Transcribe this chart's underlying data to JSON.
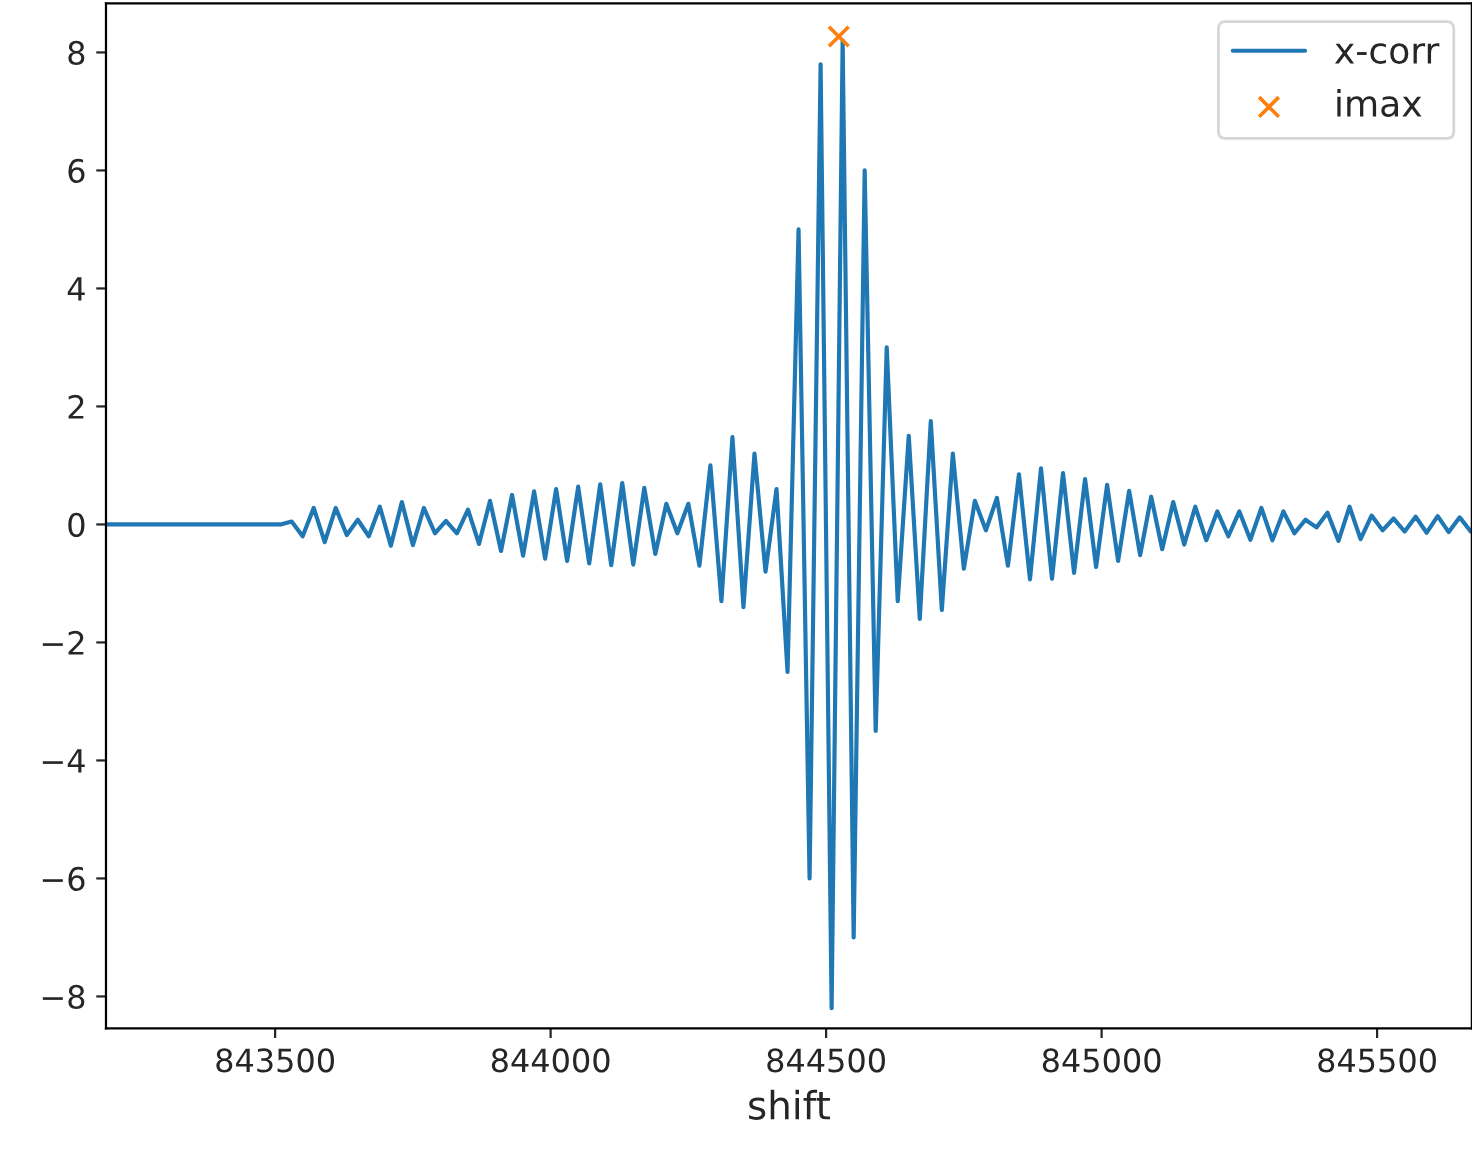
{
  "chart_data": {
    "type": "line",
    "xlabel": "shift",
    "xlim": [
      843193,
      845672
    ],
    "ylim": [
      -8.54,
      8.83
    ],
    "xticks": [
      843500,
      844000,
      844500,
      845000,
      845500
    ],
    "yticks": [
      {
        "value": -8,
        "label": "−8"
      },
      {
        "value": -6,
        "label": "−6"
      },
      {
        "value": -4,
        "label": "−4"
      },
      {
        "value": -2,
        "label": "−2"
      },
      0,
      2,
      4,
      6,
      8
    ],
    "grid": false,
    "legend": "top right",
    "series": [
      {
        "name": "x-corr",
        "color": "#1f77b4",
        "marker": "none",
        "x": [
          843193,
          843510,
          843530,
          843550,
          843570,
          843590,
          843610,
          843630,
          843650,
          843670,
          843690,
          843710,
          843730,
          843750,
          843770,
          843790,
          843810,
          843830,
          843850,
          843870,
          843890,
          843910,
          843930,
          843950,
          843970,
          843990,
          844010,
          844030,
          844050,
          844070,
          844090,
          844110,
          844130,
          844150,
          844170,
          844190,
          844210,
          844230,
          844250,
          844270,
          844290,
          844310,
          844330,
          844350,
          844370,
          844390,
          844410,
          844430,
          844450,
          844470,
          844490,
          844510,
          844530,
          844550,
          844570,
          844590,
          844610,
          844630,
          844650,
          844670,
          844690,
          844710,
          844730,
          844750,
          844770,
          844790,
          844810,
          844830,
          844850,
          844870,
          844890,
          844910,
          844930,
          844950,
          844970,
          844990,
          845010,
          845030,
          845050,
          845070,
          845090,
          845110,
          845130,
          845150,
          845170,
          845190,
          845210,
          845230,
          845250,
          845270,
          845290,
          845310,
          845330,
          845350,
          845370,
          845390,
          845410,
          845430,
          845450,
          845470,
          845490,
          845510,
          845530,
          845550,
          845570,
          845590,
          845610,
          845630,
          845650,
          845670
        ],
        "values": [
          0,
          0,
          0.05,
          -0.2,
          0.28,
          -0.3,
          0.28,
          -0.18,
          0.08,
          -0.2,
          0.3,
          -0.36,
          0.38,
          -0.35,
          0.28,
          -0.15,
          0.06,
          -0.15,
          0.25,
          -0.33,
          0.4,
          -0.45,
          0.5,
          -0.53,
          0.56,
          -0.58,
          0.6,
          -0.62,
          0.64,
          -0.66,
          0.68,
          -0.69,
          0.7,
          -0.68,
          0.62,
          -0.5,
          0.35,
          -0.15,
          0.35,
          -0.7,
          1.0,
          -1.3,
          1.48,
          -1.4,
          1.2,
          -0.8,
          0.6,
          -2.5,
          5.0,
          -6.0,
          7.8,
          -8.2,
          8.2,
          -7.0,
          6.0,
          -3.5,
          3.0,
          -1.3,
          1.5,
          -1.6,
          1.75,
          -1.45,
          1.2,
          -0.75,
          0.4,
          -0.1,
          0.45,
          -0.7,
          0.85,
          -0.93,
          0.95,
          -0.92,
          0.87,
          -0.82,
          0.77,
          -0.72,
          0.67,
          -0.62,
          0.57,
          -0.52,
          0.47,
          -0.42,
          0.38,
          -0.34,
          0.3,
          -0.27,
          0.22,
          -0.2,
          0.22,
          -0.26,
          0.28,
          -0.27,
          0.22,
          -0.15,
          0.08,
          -0.05,
          0.2,
          -0.28,
          0.3,
          -0.25,
          0.15,
          -0.1,
          0.1,
          -0.12,
          0.13,
          -0.14,
          0.14,
          -0.13,
          0.12,
          -0.12
        ]
      },
      {
        "name": "imax",
        "type": "scatter",
        "color": "#ff7f0e",
        "marker": "cross",
        "x": [
          844523
        ],
        "values": [
          8.27
        ]
      }
    ]
  }
}
